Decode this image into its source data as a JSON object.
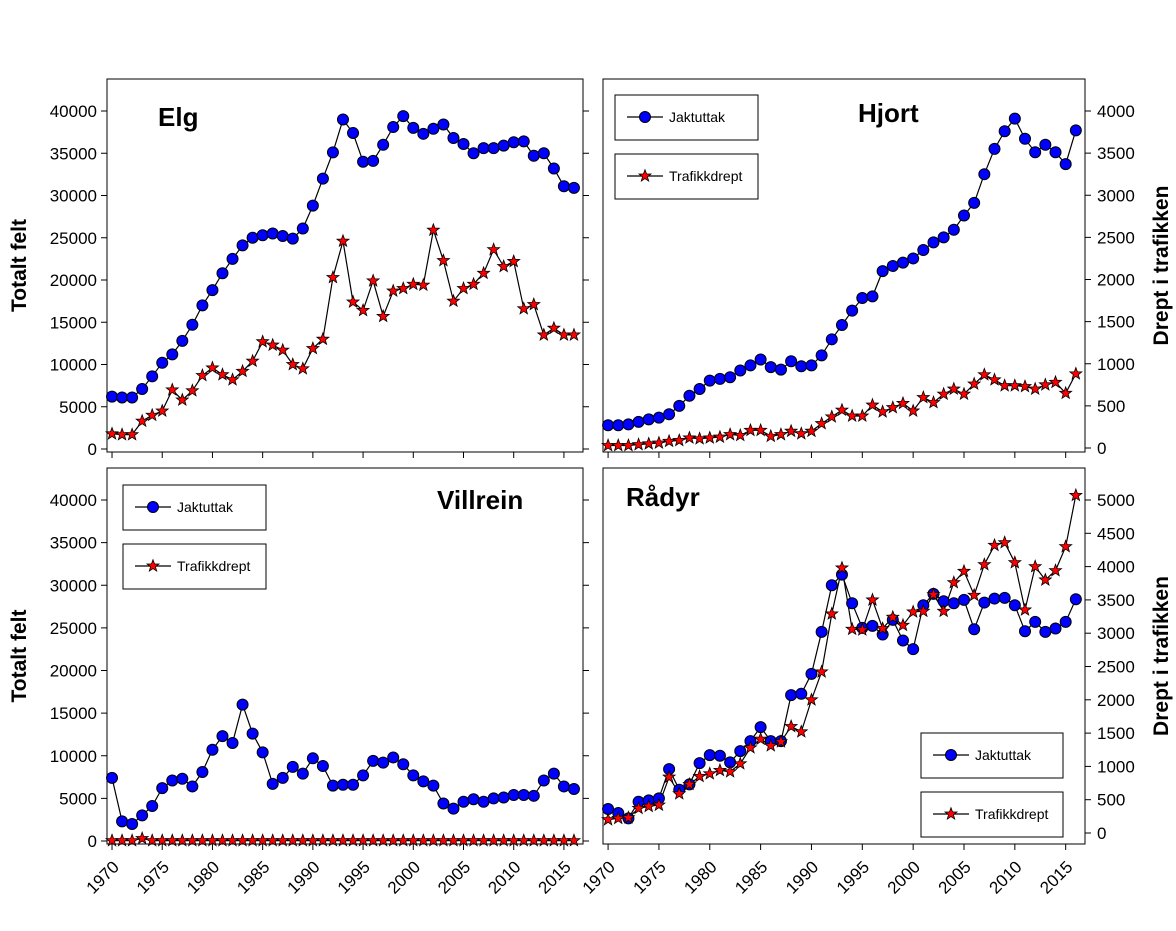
{
  "colors": {
    "jaktuttak_fill": "#0000ff",
    "trafikk_fill": "#ff0000",
    "line": "#000000",
    "background": "#ffffff"
  },
  "markers": {
    "jaktuttak": "circle",
    "trafikkdrept": "star"
  },
  "chart_data": [
    {
      "type": "line",
      "title": "Elg",
      "ylabel": "Totalt felt",
      "ylim": [
        0,
        42000
      ],
      "yticks": [
        0,
        5000,
        10000,
        15000,
        20000,
        25000,
        30000,
        35000,
        40000
      ],
      "xlim": [
        1969.5,
        2016.9
      ],
      "legend": "none",
      "grid": false,
      "series": [
        {
          "axis": "left",
          "marker": "circle",
          "x": [
            1970,
            1971,
            1972,
            1973,
            1974,
            1975,
            1976,
            1977,
            1978,
            1979,
            1980,
            1981,
            1982,
            1983,
            1984,
            1985,
            1986,
            1987,
            1988,
            1989,
            1990,
            1991,
            1992,
            1993,
            1994,
            1995,
            1996,
            1997,
            1998,
            1999,
            2000,
            2001,
            2002,
            2003,
            2004,
            2005,
            2006,
            2007,
            2008,
            2009,
            2010,
            2011,
            2012,
            2013,
            2014,
            2015,
            2016
          ],
          "values": [
            6200,
            6100,
            6100,
            7100,
            8600,
            10200,
            11200,
            12800,
            14700,
            17000,
            18800,
            20800,
            22500,
            24100,
            25000,
            25300,
            25500,
            25200,
            24900,
            26100,
            28800,
            32000,
            35100,
            39000,
            37400,
            34000,
            34100,
            36000,
            38100,
            39400,
            38000,
            37300,
            37900,
            38400,
            36800,
            36100,
            35000,
            35600,
            35600,
            35900,
            36300,
            36400,
            34700,
            35000,
            33200,
            31100,
            30900
          ]
        },
        {
          "axis": "left",
          "marker": "star",
          "x": [
            1970,
            1971,
            1972,
            1973,
            1974,
            1975,
            1976,
            1977,
            1978,
            1979,
            1980,
            1981,
            1982,
            1983,
            1984,
            1985,
            1986,
            1987,
            1988,
            1989,
            1990,
            1991,
            1992,
            1993,
            1994,
            1995,
            1996,
            1997,
            1998,
            1999,
            2000,
            2001,
            2002,
            2003,
            2004,
            2005,
            2006,
            2007,
            2008,
            2009,
            2010,
            2011,
            2012,
            2013,
            2014,
            2015,
            2016
          ],
          "values": [
            1800,
            1700,
            1700,
            3300,
            4000,
            4500,
            7000,
            5800,
            6900,
            8700,
            9600,
            8800,
            8200,
            9200,
            10400,
            12700,
            12300,
            11700,
            10000,
            9500,
            11900,
            13000,
            20300,
            24600,
            17400,
            16400,
            19900,
            15700,
            18700,
            19000,
            19500,
            19400,
            25900,
            22300,
            17500,
            19000,
            19500,
            20800,
            23600,
            21600,
            22200,
            16600,
            17100,
            13500,
            14300,
            13500,
            13500
          ]
        }
      ]
    },
    {
      "type": "line",
      "title": "Hjort",
      "y2label": "Drept i trafikken",
      "ylim": [
        0,
        4200
      ],
      "yticks": [
        0,
        500,
        1000,
        1500,
        2000,
        2500,
        3000,
        3500,
        4000
      ],
      "xlim": [
        1969.5,
        2016.9
      ],
      "legend": "top-left",
      "grid": false,
      "series": [
        {
          "name": "Jaktuttak",
          "axis": "right",
          "marker": "circle",
          "x": [
            1970,
            1971,
            1972,
            1973,
            1974,
            1975,
            1976,
            1977,
            1978,
            1979,
            1980,
            1981,
            1982,
            1983,
            1984,
            1985,
            1986,
            1987,
            1988,
            1989,
            1990,
            1991,
            1992,
            1993,
            1994,
            1995,
            1996,
            1997,
            1998,
            1999,
            2000,
            2001,
            2002,
            2003,
            2004,
            2005,
            2006,
            2007,
            2008,
            2009,
            2010,
            2011,
            2012,
            2013,
            2014,
            2015,
            2016
          ],
          "values": [
            270,
            270,
            280,
            310,
            340,
            360,
            400,
            500,
            620,
            700,
            800,
            820,
            840,
            920,
            980,
            1050,
            960,
            930,
            1030,
            970,
            980,
            1100,
            1290,
            1460,
            1630,
            1780,
            1800,
            2100,
            2160,
            2200,
            2250,
            2350,
            2440,
            2500,
            2590,
            2760,
            2910,
            3250,
            3550,
            3760,
            3910,
            3670,
            3510,
            3600,
            3510,
            3370,
            3770
          ]
        },
        {
          "name": "Trafikkdrept",
          "axis": "right",
          "marker": "star",
          "x": [
            1970,
            1971,
            1972,
            1973,
            1974,
            1975,
            1976,
            1977,
            1978,
            1979,
            1980,
            1981,
            1982,
            1983,
            1984,
            1985,
            1986,
            1987,
            1988,
            1989,
            1990,
            1991,
            1992,
            1993,
            1994,
            1995,
            1996,
            1997,
            1998,
            1999,
            2000,
            2001,
            2002,
            2003,
            2004,
            2005,
            2006,
            2007,
            2008,
            2009,
            2010,
            2011,
            2012,
            2013,
            2014,
            2015,
            2016
          ],
          "values": [
            30,
            30,
            30,
            40,
            50,
            60,
            80,
            90,
            120,
            110,
            120,
            130,
            160,
            150,
            210,
            210,
            140,
            160,
            200,
            170,
            200,
            290,
            370,
            450,
            380,
            380,
            510,
            430,
            480,
            530,
            440,
            600,
            540,
            640,
            700,
            640,
            760,
            870,
            810,
            740,
            740,
            730,
            700,
            750,
            780,
            650,
            880
          ]
        }
      ]
    },
    {
      "type": "line",
      "title": "Villrein",
      "ylabel": "Totalt felt",
      "ylim": [
        0,
        43000
      ],
      "yticks": [
        0,
        5000,
        10000,
        15000,
        20000,
        25000,
        30000,
        35000,
        40000
      ],
      "xlim": [
        1969.5,
        2016.9
      ],
      "xticks": [
        1970,
        1975,
        1980,
        1985,
        1990,
        1995,
        2000,
        2005,
        2010,
        2015
      ],
      "legend": "top-left",
      "grid": false,
      "series": [
        {
          "name": "Jaktuttak",
          "axis": "left",
          "marker": "circle",
          "x": [
            1970,
            1971,
            1972,
            1973,
            1974,
            1975,
            1976,
            1977,
            1978,
            1979,
            1980,
            1981,
            1982,
            1983,
            1984,
            1985,
            1986,
            1987,
            1988,
            1989,
            1990,
            1991,
            1992,
            1993,
            1994,
            1995,
            1996,
            1997,
            1998,
            1999,
            2000,
            2001,
            2002,
            2003,
            2004,
            2005,
            2006,
            2007,
            2008,
            2009,
            2010,
            2011,
            2012,
            2013,
            2014,
            2015,
            2016
          ],
          "values": [
            7400,
            2300,
            2000,
            3000,
            4100,
            6200,
            7100,
            7300,
            6400,
            8100,
            10700,
            12300,
            11500,
            16000,
            12600,
            10400,
            6700,
            7400,
            8700,
            7900,
            9700,
            8800,
            6500,
            6600,
            6600,
            7700,
            9400,
            9200,
            9800,
            9000,
            7700,
            7000,
            6500,
            4400,
            3800,
            4600,
            4900,
            4600,
            5000,
            5100,
            5400,
            5400,
            5300,
            7100,
            7900,
            6400,
            6100
          ]
        },
        {
          "name": "Trafikkdrept",
          "axis": "left",
          "marker": "star",
          "x": [
            1970,
            1971,
            1972,
            1973,
            1974,
            1975,
            1976,
            1977,
            1978,
            1979,
            1980,
            1981,
            1982,
            1983,
            1984,
            1985,
            1986,
            1987,
            1988,
            1989,
            1990,
            1991,
            1992,
            1993,
            1994,
            1995,
            1996,
            1997,
            1998,
            1999,
            2000,
            2001,
            2002,
            2003,
            2004,
            2005,
            2006,
            2007,
            2008,
            2009,
            2010,
            2011,
            2012,
            2013,
            2014,
            2015,
            2016
          ],
          "values": [
            50,
            50,
            50,
            300,
            50,
            50,
            50,
            50,
            50,
            50,
            50,
            50,
            50,
            50,
            50,
            50,
            50,
            50,
            50,
            50,
            50,
            50,
            50,
            50,
            50,
            50,
            50,
            50,
            50,
            50,
            50,
            50,
            50,
            50,
            50,
            50,
            50,
            50,
            50,
            50,
            50,
            50,
            50,
            50,
            50,
            50,
            50
          ]
        }
      ]
    },
    {
      "type": "line",
      "title": "Rådyr",
      "y2label": "Drept i trafikken",
      "ylim": [
        -100,
        5200
      ],
      "yticks": [
        0,
        500,
        1000,
        1500,
        2000,
        2500,
        3000,
        3500,
        4000,
        4500,
        5000
      ],
      "xlim": [
        1969.5,
        2016.9
      ],
      "xticks": [
        1970,
        1975,
        1980,
        1985,
        1990,
        1995,
        2000,
        2005,
        2010,
        2015
      ],
      "legend": "bottom-right",
      "grid": false,
      "series": [
        {
          "name": "Jaktuttak",
          "axis": "right",
          "marker": "circle",
          "x": [
            1970,
            1971,
            1972,
            1973,
            1974,
            1975,
            1976,
            1977,
            1978,
            1979,
            1980,
            1981,
            1982,
            1983,
            1984,
            1985,
            1986,
            1987,
            1988,
            1989,
            1990,
            1991,
            1992,
            1993,
            1994,
            1995,
            1996,
            1997,
            1998,
            1999,
            2000,
            2001,
            2002,
            2003,
            2004,
            2005,
            2006,
            2007,
            2008,
            2009,
            2010,
            2011,
            2012,
            2013,
            2014,
            2015,
            2016
          ],
          "values": [
            360,
            300,
            220,
            470,
            490,
            520,
            960,
            650,
            730,
            1050,
            1170,
            1160,
            1060,
            1230,
            1380,
            1590,
            1380,
            1380,
            2070,
            2090,
            2390,
            3020,
            3720,
            3880,
            3450,
            3080,
            3110,
            2980,
            3200,
            2890,
            2760,
            3420,
            3590,
            3480,
            3450,
            3500,
            3060,
            3460,
            3520,
            3530,
            3420,
            3030,
            3170,
            3020,
            3070,
            3170,
            3510
          ]
        },
        {
          "name": "Trafikkdrept",
          "axis": "right",
          "marker": "star",
          "x": [
            1970,
            1971,
            1972,
            1973,
            1974,
            1975,
            1976,
            1977,
            1978,
            1979,
            1980,
            1981,
            1982,
            1983,
            1984,
            1985,
            1986,
            1987,
            1988,
            1989,
            1990,
            1991,
            1992,
            1993,
            1994,
            1995,
            1996,
            1997,
            1998,
            1999,
            2000,
            2001,
            2002,
            2003,
            2004,
            2005,
            2006,
            2007,
            2008,
            2009,
            2010,
            2011,
            2012,
            2013,
            2014,
            2015,
            2016
          ],
          "values": [
            200,
            220,
            230,
            370,
            400,
            420,
            840,
            590,
            730,
            850,
            890,
            940,
            920,
            1040,
            1280,
            1410,
            1310,
            1370,
            1600,
            1520,
            2000,
            2420,
            3290,
            3980,
            3060,
            3050,
            3500,
            3070,
            3240,
            3120,
            3320,
            3330,
            3580,
            3330,
            3760,
            3930,
            3570,
            4030,
            4320,
            4360,
            4060,
            3350,
            4000,
            3800,
            3940,
            4300,
            5070
          ]
        }
      ]
    }
  ]
}
